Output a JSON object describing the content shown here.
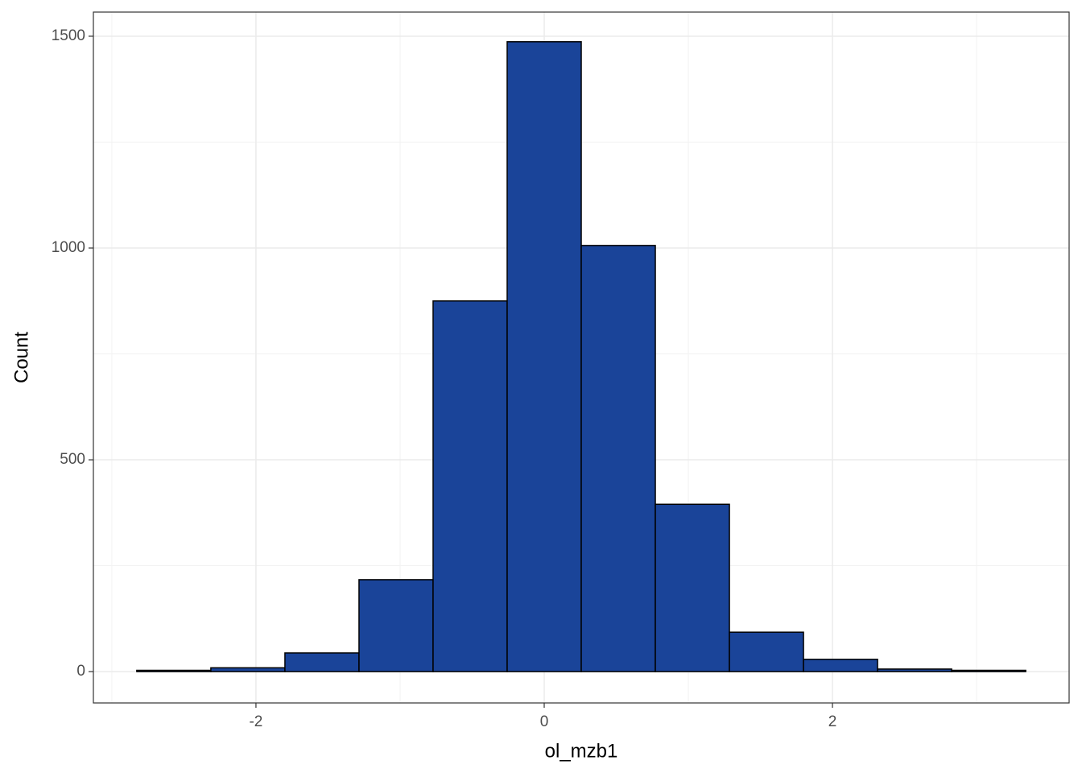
{
  "chart_data": {
    "type": "histogram",
    "x_label": "ol_mzb1",
    "y_label": "Count",
    "bins": [
      -2.827,
      -2.313,
      -1.799,
      -1.285,
      -0.771,
      -0.257,
      0.257,
      0.771,
      1.285,
      1.799,
      2.313,
      2.827,
      3.341
    ],
    "counts": [
      3,
      9,
      44,
      217,
      875,
      1487,
      1006,
      395,
      93,
      29,
      6,
      3
    ],
    "color": "#1a4499",
    "xlim": [
      -3.128,
      3.642
    ],
    "ylim": [
      -74,
      1557
    ],
    "xticks": [
      -2,
      0,
      2
    ],
    "yticks": [
      0,
      500,
      1000,
      1500
    ],
    "grid": true
  }
}
